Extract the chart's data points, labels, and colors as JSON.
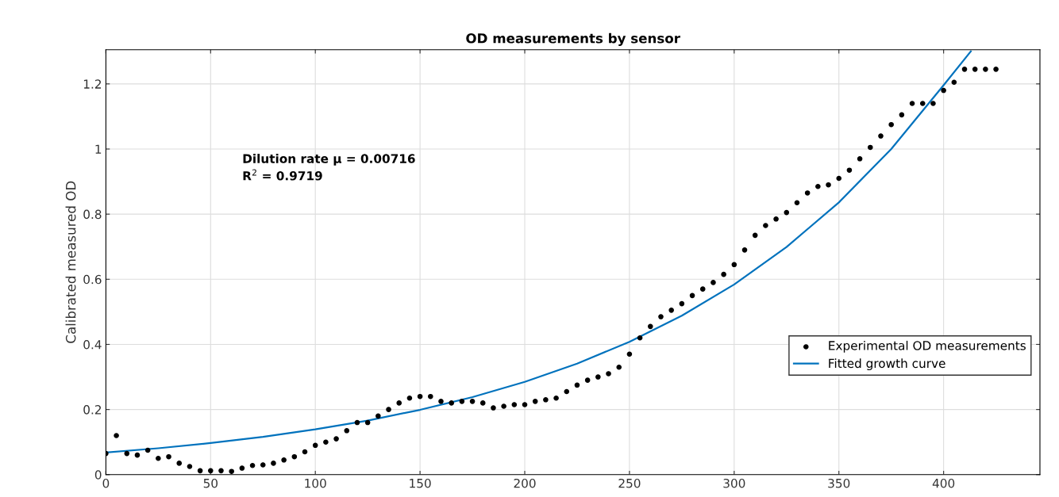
{
  "chart_data": {
    "type": "scatter",
    "title": "OD measurements by sensor",
    "ylabel": "Calibrated measured OD",
    "annotations": [
      "Dilution rate μ = 0.00716\nR$^{2}$ = 0.9719"
    ],
    "xlim": [
      0,
      446
    ],
    "ylim": [
      0,
      1.305
    ],
    "xticks": [
      0,
      50,
      100,
      150,
      200,
      250,
      300,
      350,
      400
    ],
    "yticks": [
      0,
      0.2,
      0.4,
      0.6,
      0.8,
      1,
      1.2
    ],
    "grid": true,
    "legend": "bottom right",
    "series": [
      {
        "name": "Experimental OD measurements",
        "marker": "circle",
        "color": "#000000",
        "x": [
          0,
          5,
          10,
          15,
          20,
          25,
          30,
          35,
          40,
          45,
          50,
          55,
          60,
          65,
          70,
          75,
          80,
          85,
          90,
          95,
          100,
          105,
          110,
          115,
          120,
          125,
          130,
          135,
          140,
          145,
          150,
          155,
          160,
          165,
          170,
          175,
          180,
          185,
          190,
          195,
          200,
          205,
          210,
          215,
          220,
          225,
          230,
          235,
          240,
          245,
          250,
          255,
          260,
          265,
          270,
          275,
          280,
          285,
          290,
          295,
          300,
          305,
          310,
          315,
          320,
          325,
          330,
          335,
          340,
          345,
          350,
          355,
          360,
          365,
          370,
          375,
          380,
          385,
          390,
          395,
          400,
          405,
          410,
          415,
          420,
          425
        ],
        "values": [
          0.065,
          0.12,
          0.065,
          0.06,
          0.075,
          0.05,
          0.055,
          0.035,
          0.025,
          0.012,
          0.012,
          0.012,
          0.01,
          0.02,
          0.028,
          0.03,
          0.035,
          0.045,
          0.055,
          0.07,
          0.09,
          0.1,
          0.11,
          0.135,
          0.16,
          0.16,
          0.18,
          0.2,
          0.22,
          0.235,
          0.24,
          0.24,
          0.225,
          0.22,
          0.225,
          0.225,
          0.22,
          0.205,
          0.21,
          0.215,
          0.215,
          0.225,
          0.23,
          0.235,
          0.255,
          0.275,
          0.29,
          0.3,
          0.31,
          0.33,
          0.37,
          0.42,
          0.455,
          0.485,
          0.505,
          0.525,
          0.55,
          0.57,
          0.59,
          0.615,
          0.645,
          0.69,
          0.735,
          0.765,
          0.785,
          0.805,
          0.835,
          0.865,
          0.885,
          0.89,
          0.91,
          0.935,
          0.97,
          1.005,
          1.04,
          1.075,
          1.105,
          1.14,
          1.14,
          1.14,
          1.18,
          1.205,
          1.245,
          1.245,
          1.245,
          1.245
        ]
      },
      {
        "name": "Fitted growth curve",
        "type": "line",
        "marker": "none",
        "line_style": "solid",
        "color": "#0072bd",
        "x": [
          0,
          25,
          50,
          75,
          100,
          125,
          150,
          175,
          200,
          225,
          250,
          275,
          300,
          325,
          350,
          375,
          400,
          413
        ],
        "values": [
          0.068,
          0.081,
          0.097,
          0.116,
          0.139,
          0.166,
          0.199,
          0.238,
          0.285,
          0.341,
          0.408,
          0.488,
          0.584,
          0.699,
          0.836,
          1.0,
          1.196,
          1.3
        ]
      }
    ]
  }
}
